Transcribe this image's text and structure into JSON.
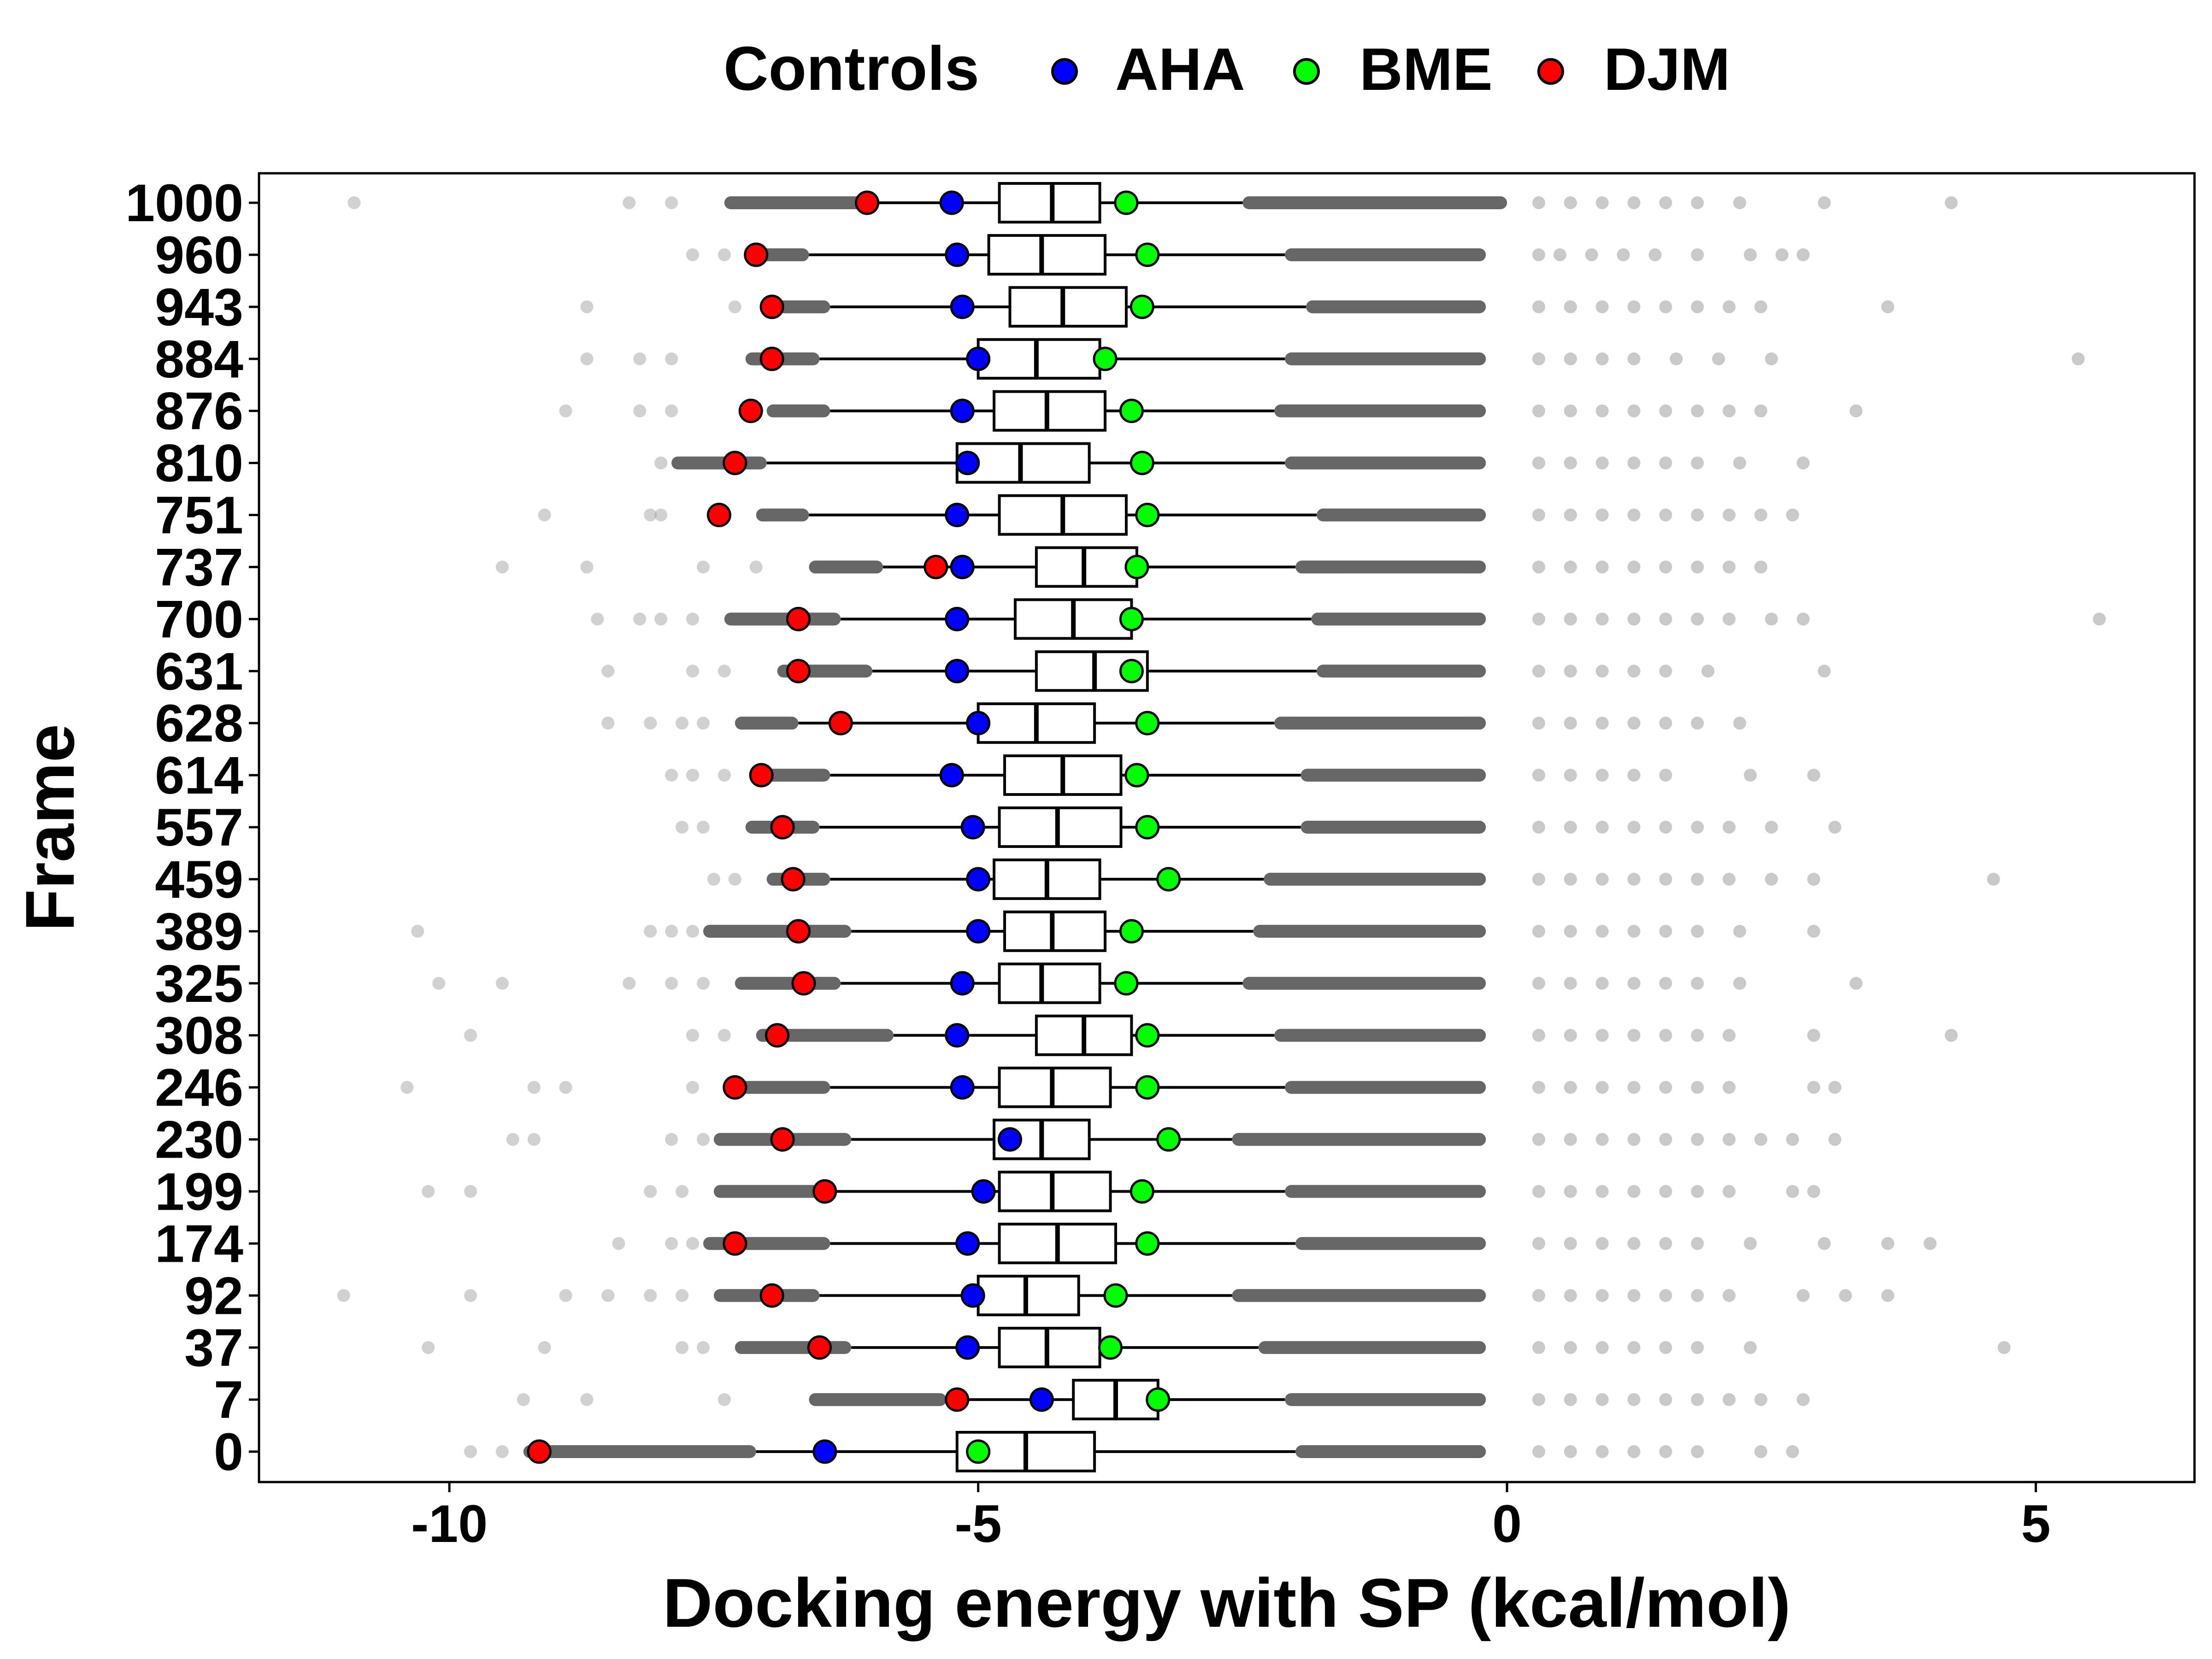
{
  "legend": {
    "title": "Controls",
    "position": "top",
    "entries": [
      {
        "key": "AHA",
        "label": "AHA",
        "color": "#0000ff"
      },
      {
        "key": "BME",
        "label": "BME",
        "color": "#00ff00"
      },
      {
        "key": "DJM",
        "label": "DJM",
        "color": "#ff0000"
      }
    ]
  },
  "chart_data": {
    "type": "boxplot",
    "orientation": "horizontal",
    "xlabel": "Docking energy with SP (kcal/mol)",
    "ylabel": "Frame",
    "xlim": [
      -11.8,
      6.5
    ],
    "xticks": [
      -10,
      -5,
      0,
      5
    ],
    "xtick_labels": [
      "-10",
      "-5",
      "0",
      "5"
    ],
    "grid": false,
    "outlier_color": "#666666",
    "categories": [
      "1000",
      "960",
      "943",
      "884",
      "876",
      "810",
      "751",
      "737",
      "700",
      "631",
      "628",
      "614",
      "557",
      "459",
      "389",
      "325",
      "308",
      "246",
      "230",
      "199",
      "174",
      "92",
      "37",
      "7",
      "0"
    ],
    "boxes": [
      {
        "frame": "1000",
        "whisker_low": -6.0,
        "q1": -4.8,
        "median": -4.3,
        "q3": -3.85,
        "whisker_high": -2.5
      },
      {
        "frame": "960",
        "whisker_low": -6.6,
        "q1": -4.9,
        "median": -4.4,
        "q3": -3.8,
        "whisker_high": -2.1
      },
      {
        "frame": "943",
        "whisker_low": -6.4,
        "q1": -4.7,
        "median": -4.2,
        "q3": -3.6,
        "whisker_high": -1.9
      },
      {
        "frame": "884",
        "whisker_low": -6.5,
        "q1": -5.0,
        "median": -4.45,
        "q3": -3.85,
        "whisker_high": -2.1
      },
      {
        "frame": "876",
        "whisker_low": -6.4,
        "q1": -4.85,
        "median": -4.35,
        "q3": -3.8,
        "whisker_high": -2.2
      },
      {
        "frame": "810",
        "whisker_low": -7.0,
        "q1": -5.2,
        "median": -4.6,
        "q3": -3.95,
        "whisker_high": -2.1
      },
      {
        "frame": "751",
        "whisker_low": -6.6,
        "q1": -4.8,
        "median": -4.2,
        "q3": -3.6,
        "whisker_high": -1.8
      },
      {
        "frame": "737",
        "whisker_low": -5.9,
        "q1": -4.45,
        "median": -4.0,
        "q3": -3.5,
        "whisker_high": -2.0
      },
      {
        "frame": "700",
        "whisker_low": -6.3,
        "q1": -4.65,
        "median": -4.1,
        "q3": -3.55,
        "whisker_high": -1.85
      },
      {
        "frame": "631",
        "whisker_low": -6.0,
        "q1": -4.45,
        "median": -3.9,
        "q3": -3.4,
        "whisker_high": -1.8
      },
      {
        "frame": "628",
        "whisker_low": -6.7,
        "q1": -5.0,
        "median": -4.45,
        "q3": -3.9,
        "whisker_high": -2.2
      },
      {
        "frame": "614",
        "whisker_low": -6.4,
        "q1": -4.75,
        "median": -4.2,
        "q3": -3.65,
        "whisker_high": -1.95
      },
      {
        "frame": "557",
        "whisker_low": -6.5,
        "q1": -4.8,
        "median": -4.25,
        "q3": -3.65,
        "whisker_high": -1.95
      },
      {
        "frame": "459",
        "whisker_low": -6.4,
        "q1": -4.85,
        "median": -4.35,
        "q3": -3.85,
        "whisker_high": -2.3
      },
      {
        "frame": "389",
        "whisker_low": -6.2,
        "q1": -4.75,
        "median": -4.3,
        "q3": -3.8,
        "whisker_high": -2.4
      },
      {
        "frame": "325",
        "whisker_low": -6.3,
        "q1": -4.8,
        "median": -4.4,
        "q3": -3.85,
        "whisker_high": -2.5
      },
      {
        "frame": "308",
        "whisker_low": -5.8,
        "q1": -4.45,
        "median": -4.0,
        "q3": -3.55,
        "whisker_high": -2.2
      },
      {
        "frame": "246",
        "whisker_low": -6.4,
        "q1": -4.8,
        "median": -4.3,
        "q3": -3.75,
        "whisker_high": -2.1
      },
      {
        "frame": "230",
        "whisker_low": -6.2,
        "q1": -4.85,
        "median": -4.4,
        "q3": -3.95,
        "whisker_high": -2.6
      },
      {
        "frame": "199",
        "whisker_low": -6.4,
        "q1": -4.8,
        "median": -4.3,
        "q3": -3.75,
        "whisker_high": -2.1
      },
      {
        "frame": "174",
        "whisker_low": -6.4,
        "q1": -4.8,
        "median": -4.25,
        "q3": -3.7,
        "whisker_high": -2.0
      },
      {
        "frame": "92",
        "whisker_low": -6.5,
        "q1": -5.0,
        "median": -4.55,
        "q3": -4.05,
        "whisker_high": -2.6
      },
      {
        "frame": "37",
        "whisker_low": -6.2,
        "q1": -4.8,
        "median": -4.35,
        "q3": -3.85,
        "whisker_high": -2.35
      },
      {
        "frame": "7",
        "whisker_low": -5.3,
        "q1": -4.1,
        "median": -3.7,
        "q3": -3.3,
        "whisker_high": -2.1
      },
      {
        "frame": "0",
        "whisker_low": -7.1,
        "q1": -5.2,
        "median": -4.55,
        "q3": -3.9,
        "whisker_high": -2.0
      }
    ],
    "controls": {
      "AHA": [
        -5.25,
        -5.2,
        -5.15,
        -5.0,
        -5.15,
        -5.1,
        -5.2,
        -5.15,
        -5.2,
        -5.2,
        -5.0,
        -5.25,
        -5.05,
        -5.0,
        -5.0,
        -5.15,
        -5.2,
        -5.15,
        -4.7,
        -4.95,
        -5.1,
        -5.05,
        -5.1,
        -4.4,
        -6.45
      ],
      "BME": [
        -3.6,
        -3.4,
        -3.45,
        -3.8,
        -3.55,
        -3.45,
        -3.4,
        -3.5,
        -3.55,
        -3.55,
        -3.4,
        -3.5,
        -3.4,
        -3.2,
        -3.55,
        -3.6,
        -3.4,
        -3.4,
        -3.2,
        -3.45,
        -3.4,
        -3.7,
        -3.75,
        -3.3,
        -5.0
      ],
      "DJM": [
        -6.05,
        -7.1,
        -6.95,
        -6.95,
        -7.15,
        -7.3,
        -7.45,
        -5.4,
        -6.7,
        -6.7,
        -6.3,
        -7.05,
        -6.85,
        -6.75,
        -6.7,
        -6.65,
        -6.9,
        -7.3,
        -6.85,
        -6.45,
        -7.3,
        -6.95,
        -6.5,
        -5.2,
        -9.15
      ]
    },
    "outliers_low_light": [
      [
        -10.9,
        -8.3,
        -7.9
      ],
      [
        -7.7,
        -7.4
      ],
      [
        -8.7,
        -7.3
      ],
      [
        -8.7,
        -8.2,
        -7.9
      ],
      [
        -8.9,
        -8.2,
        -7.9
      ],
      [
        -8.0
      ],
      [
        -9.1,
        -8.1,
        -8.0
      ],
      [
        -9.5,
        -8.7,
        -7.6,
        -7.1
      ],
      [
        -8.6,
        -8.2,
        -8.0,
        -7.7
      ],
      [
        -8.5,
        -7.7,
        -7.4
      ],
      [
        -8.5,
        -8.1,
        -7.8,
        -7.6
      ],
      [
        -7.9,
        -7.7,
        -7.4
      ],
      [
        -7.8,
        -7.6
      ],
      [
        -7.5,
        -7.3
      ],
      [
        -10.3,
        -8.1,
        -7.9,
        -7.7
      ],
      [
        -10.1,
        -9.5,
        -8.3,
        -7.9,
        -7.6
      ],
      [
        -9.8,
        -7.7,
        -7.4
      ],
      [
        -10.4,
        -9.2,
        -8.9,
        -7.7
      ],
      [
        -9.4,
        -9.2,
        -7.9,
        -7.6
      ],
      [
        -10.2,
        -9.8,
        -8.1,
        -7.8
      ],
      [
        -8.4,
        -7.9,
        -7.7
      ],
      [
        -11.0,
        -9.8,
        -8.9,
        -8.5,
        -8.1,
        -7.8
      ],
      [
        -10.2,
        -9.1,
        -7.8,
        -7.6
      ],
      [
        -9.3,
        -8.7,
        -7.4
      ],
      [
        -9.8,
        -9.5
      ]
    ],
    "outliers_low_dense_start": [
      -7.4,
      -7.2,
      -6.9,
      -7.2,
      -7.0,
      -7.9,
      -7.1,
      -6.6,
      -7.4,
      -6.9,
      -7.3,
      -7.1,
      -7.2,
      -7.0,
      -7.6,
      -7.3,
      -7.1,
      -7.3,
      -7.5,
      -7.5,
      -7.6,
      -7.5,
      -7.3,
      -6.6,
      -9.3
    ],
    "outliers_high_dense_end": [
      0.0,
      -0.2,
      -0.2,
      -0.2,
      -0.2,
      -0.2,
      -0.2,
      -0.2,
      -0.2,
      -0.2,
      -0.2,
      -0.2,
      -0.2,
      -0.2,
      -0.2,
      -0.2,
      -0.2,
      -0.2,
      -0.2,
      -0.2,
      -0.2,
      -0.2,
      -0.2,
      -0.2,
      -0.2
    ],
    "outliers_high_light": [
      [
        0.3,
        0.6,
        0.9,
        1.2,
        1.5,
        1.8,
        2.2,
        3.0,
        4.2
      ],
      [
        0.3,
        0.5,
        0.8,
        1.1,
        1.4,
        1.8,
        2.3,
        2.6,
        2.8
      ],
      [
        0.3,
        0.6,
        0.9,
        1.2,
        1.5,
        1.8,
        2.1,
        2.4,
        3.6
      ],
      [
        0.3,
        0.6,
        0.9,
        1.2,
        1.6,
        2.0,
        2.5,
        5.4
      ],
      [
        0.3,
        0.6,
        0.9,
        1.2,
        1.5,
        1.8,
        2.1,
        2.4,
        3.3
      ],
      [
        0.3,
        0.6,
        0.9,
        1.2,
        1.5,
        1.8,
        2.2,
        2.8
      ],
      [
        0.3,
        0.6,
        0.9,
        1.2,
        1.5,
        1.8,
        2.1,
        2.4,
        2.7
      ],
      [
        0.3,
        0.6,
        0.9,
        1.2,
        1.5,
        1.8,
        2.1,
        2.4
      ],
      [
        0.3,
        0.6,
        0.9,
        1.2,
        1.5,
        1.8,
        2.1,
        2.5,
        2.8,
        5.6
      ],
      [
        0.3,
        0.6,
        0.9,
        1.2,
        1.5,
        1.9,
        3.0
      ],
      [
        0.3,
        0.6,
        0.9,
        1.2,
        1.5,
        1.8,
        2.2
      ],
      [
        0.3,
        0.6,
        0.9,
        1.2,
        1.5,
        2.3,
        2.9
      ],
      [
        0.3,
        0.6,
        0.9,
        1.2,
        1.5,
        1.8,
        2.1,
        2.5,
        3.1
      ],
      [
        0.3,
        0.6,
        0.9,
        1.2,
        1.5,
        1.8,
        2.1,
        2.5,
        2.9,
        4.6
      ],
      [
        0.3,
        0.6,
        0.9,
        1.2,
        1.5,
        1.8,
        2.2,
        2.9
      ],
      [
        0.3,
        0.6,
        0.9,
        1.2,
        1.5,
        1.8,
        2.2,
        3.3
      ],
      [
        0.3,
        0.6,
        0.9,
        1.2,
        1.5,
        1.8,
        2.1,
        2.9,
        4.2
      ],
      [
        0.3,
        0.6,
        0.9,
        1.2,
        1.5,
        1.8,
        2.1,
        2.9,
        3.1
      ],
      [
        0.3,
        0.6,
        0.9,
        1.2,
        1.5,
        1.8,
        2.1,
        2.4,
        2.7,
        3.1
      ],
      [
        0.3,
        0.6,
        0.9,
        1.2,
        1.5,
        1.8,
        2.1,
        2.7,
        2.9
      ],
      [
        0.3,
        0.6,
        0.9,
        1.2,
        1.5,
        1.8,
        2.3,
        3.0,
        3.6,
        4.0
      ],
      [
        0.3,
        0.6,
        0.9,
        1.2,
        1.5,
        1.8,
        2.1,
        2.8,
        3.2,
        3.6
      ],
      [
        0.3,
        0.6,
        0.9,
        1.2,
        1.5,
        1.8,
        2.3,
        4.7
      ],
      [
        0.3,
        0.6,
        0.9,
        1.2,
        1.5,
        1.8,
        2.1,
        2.4,
        2.8
      ],
      [
        0.3,
        0.6,
        0.9,
        1.2,
        1.5,
        1.8,
        2.4,
        2.7
      ]
    ]
  }
}
